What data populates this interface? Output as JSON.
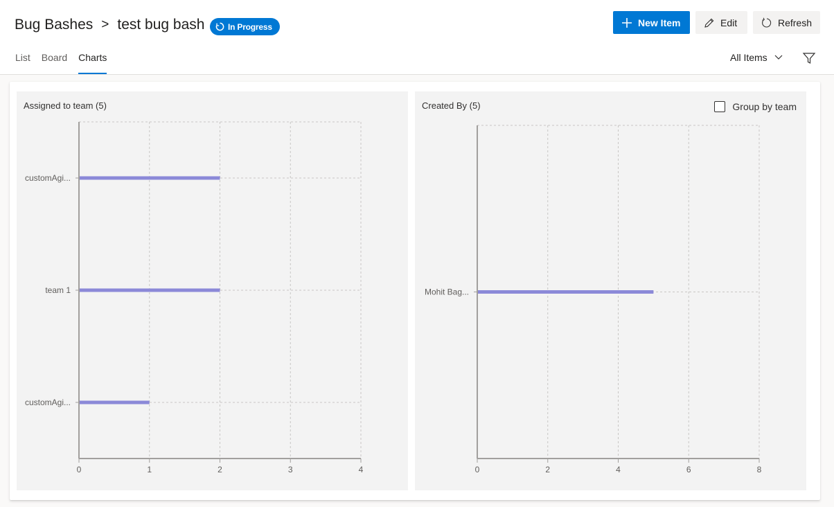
{
  "breadcrumb": {
    "root": "Bug Bashes",
    "separator": ">",
    "current": "test bug bash"
  },
  "status": {
    "label": "In Progress",
    "color": "#0078d4"
  },
  "toolbar": {
    "new_item_label": "New Item",
    "edit_label": "Edit",
    "refresh_label": "Refresh"
  },
  "tabs": [
    {
      "label": "List",
      "active": false
    },
    {
      "label": "Board",
      "active": false
    },
    {
      "label": "Charts",
      "active": true
    }
  ],
  "filter": {
    "label": "All Items"
  },
  "colors": {
    "accent": "#0078d4",
    "bar": "#8b89d8"
  },
  "chart_data": [
    {
      "type": "bar",
      "orientation": "horizontal",
      "title": "Assigned to team (5)",
      "categories": [
        "customAgi...",
        "team 1",
        "customAgi..."
      ],
      "values": [
        2,
        2,
        1
      ],
      "xlim": [
        0,
        4
      ],
      "xticks": [
        "0",
        "1",
        "2",
        "3",
        "4"
      ],
      "grid": true
    },
    {
      "type": "bar",
      "orientation": "horizontal",
      "title": "Created By (5)",
      "categories": [
        "Mohit Bag..."
      ],
      "values": [
        5
      ],
      "xlim": [
        0,
        8
      ],
      "xticks": [
        "0",
        "2",
        "4",
        "6",
        "8"
      ],
      "grid": true,
      "option_label": "Group by team",
      "option_checked": false
    }
  ]
}
